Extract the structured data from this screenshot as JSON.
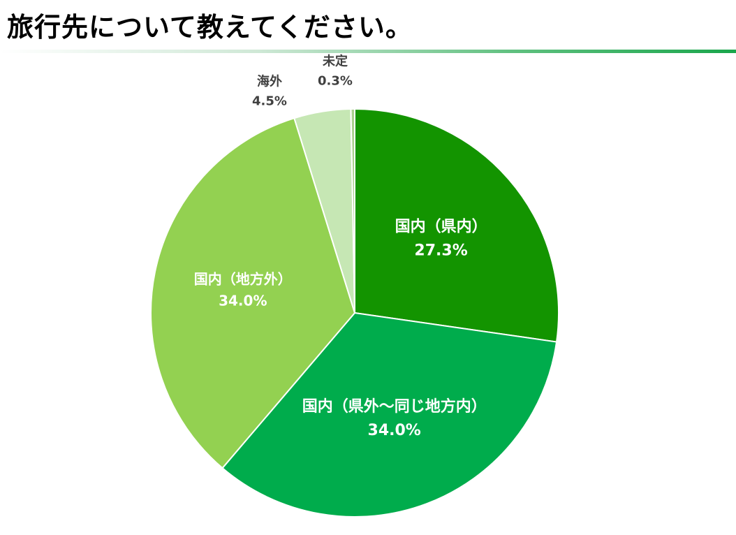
{
  "title": "旅行先について教えてください。",
  "chart_data": {
    "type": "pie",
    "title": "旅行先について教えてください。",
    "slices": [
      {
        "label": "国内（県内）",
        "value": 27.3,
        "value_label": "27.3%",
        "color": "#139400",
        "label_color": "#ffffff"
      },
      {
        "label": "国内（県外～同じ地方内）",
        "value": 34.0,
        "value_label": "34.0%",
        "color": "#00ac4c",
        "label_color": "#ffffff"
      },
      {
        "label": "国内（地方外）",
        "value": 34.0,
        "value_label": "34.0%",
        "color": "#93d151",
        "label_color": "#ffffff"
      },
      {
        "label": "海外",
        "value": 4.5,
        "value_label": "4.5%",
        "color": "#c6e7b4",
        "label_color": "#404040"
      },
      {
        "label": "未定",
        "value": 0.3,
        "value_label": "0.3%",
        "color": "#a9d08e",
        "label_color": "#404040"
      }
    ]
  }
}
